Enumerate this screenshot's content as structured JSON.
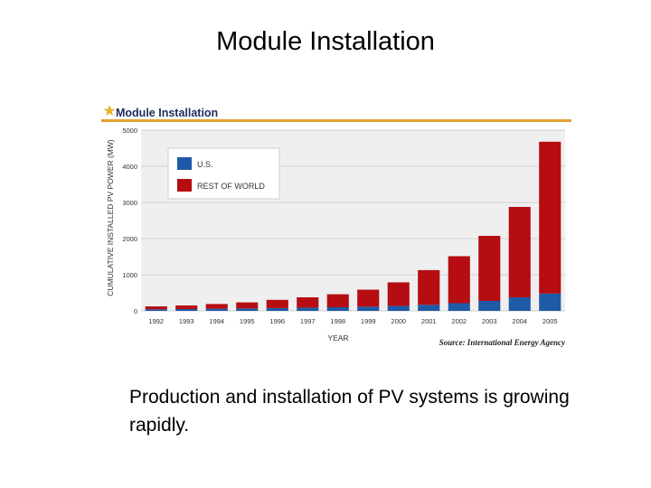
{
  "slide": {
    "title": "Module Installation",
    "caption": "Production and installation of PV systems is growing rapidly."
  },
  "chart_data": {
    "type": "bar",
    "stacked": true,
    "title": "Module Installation",
    "ylabel": "CUMULATIVE INSTALLED PV POWER (MW)",
    "xlabel": "YEAR",
    "source": "Source: International Energy Agency",
    "ylim": [
      0,
      5000
    ],
    "yticks": [
      0,
      1000,
      2000,
      3000,
      4000,
      5000
    ],
    "grid": true,
    "legend_position": "top-left",
    "categories": [
      "1992",
      "1993",
      "1994",
      "1995",
      "1996",
      "1997",
      "1998",
      "1999",
      "2000",
      "2001",
      "2002",
      "2003",
      "2004",
      "2005"
    ],
    "series": [
      {
        "name": "U.S.",
        "color": "#1f5aa6",
        "values": [
          44,
          50,
          58,
          67,
          77,
          89,
          100,
          117,
          139,
          168,
          212,
          275,
          376,
          479
        ]
      },
      {
        "name": "REST OF WORLD",
        "color": "#b50d12",
        "values": [
          80,
          100,
          132,
          168,
          228,
          286,
          360,
          470,
          650,
          960,
          1300,
          1800,
          2500,
          4200
        ]
      }
    ],
    "colors": {
      "header_rule": "#e0a030",
      "grid": "#d2d2d2",
      "plot_background": "#efefef",
      "legend_background": "#ffffff",
      "star": "#e8b020"
    }
  }
}
